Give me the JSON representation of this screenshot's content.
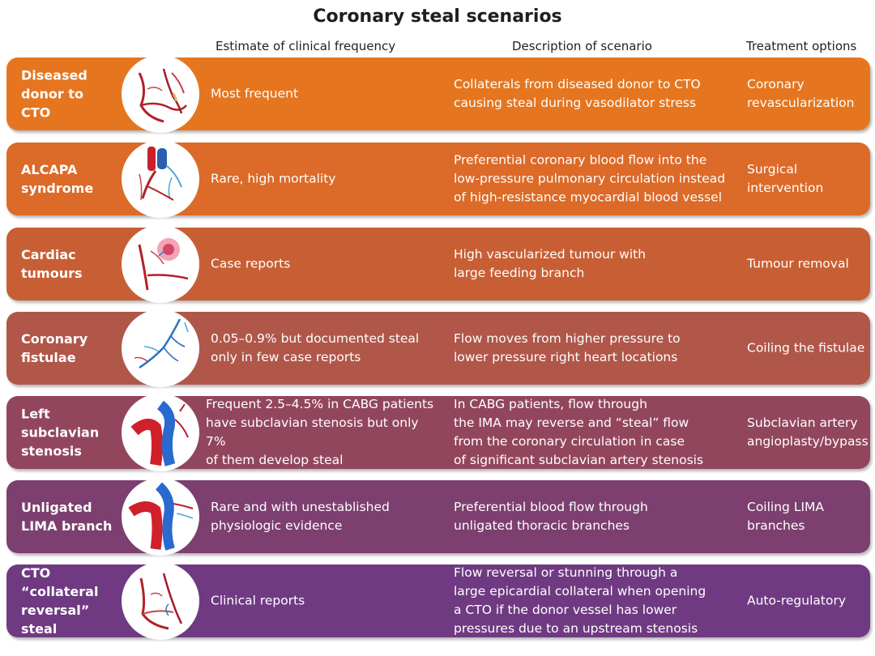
{
  "title": "Coronary steal scenarios",
  "headers": {
    "frequency": "Estimate of clinical frequency",
    "description": "Description of scenario",
    "treatment": "Treatment options"
  },
  "rows": [
    {
      "name": "Diseased\ndonor to\nCTO",
      "icon": "coronary-artery-icon",
      "frequency": "Most frequent",
      "description": "Collaterals from diseased donor to CTO\ncausing steal during vasodilator stress",
      "treatment": "Coronary\nrevascularization",
      "color": "#e5761f"
    },
    {
      "name": "ALCAPA\nsyndrome",
      "icon": "alcapa-heart-icon",
      "frequency": "Rare, high mortality",
      "description": "Preferential coronary blood flow into the\nlow-pressure pulmonary circulation instead\nof high-resistance myocardial blood vessel",
      "treatment": "Surgical\nintervention",
      "color": "#dc6a28"
    },
    {
      "name": "Cardiac\ntumours",
      "icon": "cardiac-tumour-icon",
      "frequency": "Case reports",
      "description": "High vascularized tumour with\nlarge feeding branch",
      "treatment": "Tumour removal",
      "color": "#c85f34"
    },
    {
      "name": "Coronary\nfistulae",
      "icon": "fistula-vessels-icon",
      "frequency": "0.05–0.9% but documented steal\nonly in few case reports",
      "description": "Flow moves from higher pressure to\nlower pressure right heart locations",
      "treatment": "Coiling the fistulae",
      "color": "#b0574a"
    },
    {
      "name": "Left\nsubclavian\nstenosis",
      "icon": "subclavian-artery-icon",
      "frequency": "Frequent 2.5–4.5% in CABG patients\nhave subclavian stenosis but only 7%\nof them develop steal",
      "description": "In CABG patients, flow through\nthe IMA may reverse and “steal” flow\nfrom the coronary circulation in case\nof significant subclavian artery stenosis",
      "treatment": "Subclavian artery\nangioplasty/bypass",
      "color": "#92465d"
    },
    {
      "name": "Unligated\nLIMA branch",
      "icon": "lima-branch-icon",
      "frequency": "Rare and with unestablished\nphysiologic evidence",
      "description": "Preferential blood flow through\nunligated thoracic branches",
      "treatment": "Coiling LIMA\nbranches",
      "color": "#7c3f6f"
    },
    {
      "name": "CTO\n“collateral\nreversal” steal",
      "icon": "collateral-reversal-icon",
      "frequency": "Clinical reports",
      "description": "Flow reversal or stunning through a\nlarge epicardial collateral when opening\na CTO if the donor vessel has lower\npressures due to an upstream stenosis",
      "treatment": "Auto-regulatory",
      "color": "#6f3a82"
    }
  ]
}
